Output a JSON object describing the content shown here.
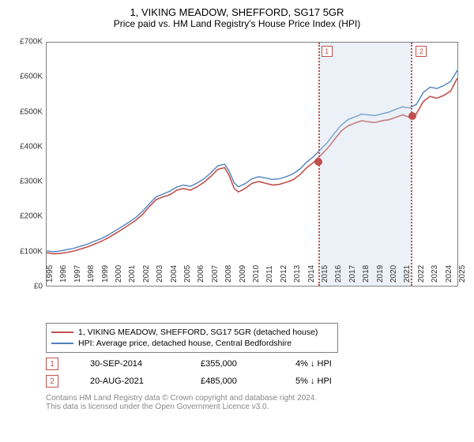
{
  "title": "1, VIKING MEADOW, SHEFFORD, SG17 5GR",
  "subtitle": "Price paid vs. HM Land Registry's House Price Index (HPI)",
  "chart": {
    "type": "line",
    "background_color": "#ffffff",
    "border_color": "#808080",
    "x_range": [
      1995,
      2025
    ],
    "y_range": [
      0,
      700000
    ],
    "y_ticks": [
      0,
      100000,
      200000,
      300000,
      400000,
      500000,
      600000,
      700000
    ],
    "y_tick_labels": [
      "£0",
      "£100K",
      "£200K",
      "£300K",
      "£400K",
      "£500K",
      "£600K",
      "£700K"
    ],
    "x_ticks": [
      1995,
      1996,
      1997,
      1998,
      1999,
      2000,
      2001,
      2002,
      2003,
      2004,
      2005,
      2006,
      2007,
      2008,
      2009,
      2010,
      2011,
      2012,
      2013,
      2014,
      2015,
      2016,
      2017,
      2018,
      2019,
      2020,
      2021,
      2022,
      2023,
      2024,
      2025
    ],
    "tick_fontsize": 10,
    "series": [
      {
        "name": "price_paid",
        "label": "1, VIKING MEADOW, SHEFFORD, SG17 5GR (detached house)",
        "color": "#c0504d",
        "line_width": 1.6,
        "points": [
          [
            1995,
            95000
          ],
          [
            1995.5,
            92000
          ],
          [
            1996,
            93000
          ],
          [
            1996.5,
            96000
          ],
          [
            1997,
            100000
          ],
          [
            1997.5,
            106000
          ],
          [
            1998,
            112000
          ],
          [
            1998.5,
            120000
          ],
          [
            1999,
            128000
          ],
          [
            1999.5,
            138000
          ],
          [
            2000,
            150000
          ],
          [
            2000.5,
            162000
          ],
          [
            2001,
            175000
          ],
          [
            2001.5,
            188000
          ],
          [
            2002,
            205000
          ],
          [
            2002.5,
            228000
          ],
          [
            2003,
            248000
          ],
          [
            2003.5,
            256000
          ],
          [
            2004,
            262000
          ],
          [
            2004.5,
            275000
          ],
          [
            2005,
            280000
          ],
          [
            2005.5,
            275000
          ],
          [
            2006,
            285000
          ],
          [
            2006.5,
            298000
          ],
          [
            2007,
            315000
          ],
          [
            2007.5,
            335000
          ],
          [
            2008,
            340000
          ],
          [
            2008.3,
            320000
          ],
          [
            2008.7,
            280000
          ],
          [
            2009,
            270000
          ],
          [
            2009.5,
            280000
          ],
          [
            2010,
            295000
          ],
          [
            2010.5,
            300000
          ],
          [
            2011,
            295000
          ],
          [
            2011.5,
            290000
          ],
          [
            2012,
            292000
          ],
          [
            2012.5,
            298000
          ],
          [
            2013,
            305000
          ],
          [
            2013.5,
            320000
          ],
          [
            2014,
            340000
          ],
          [
            2014.5,
            355000
          ],
          [
            2015,
            375000
          ],
          [
            2015.5,
            395000
          ],
          [
            2016,
            420000
          ],
          [
            2016.5,
            445000
          ],
          [
            2017,
            460000
          ],
          [
            2017.5,
            468000
          ],
          [
            2018,
            475000
          ],
          [
            2018.5,
            472000
          ],
          [
            2019,
            470000
          ],
          [
            2019.5,
            475000
          ],
          [
            2020,
            478000
          ],
          [
            2020.5,
            485000
          ],
          [
            2021,
            492000
          ],
          [
            2021.5,
            485000
          ],
          [
            2022,
            495000
          ],
          [
            2022.5,
            530000
          ],
          [
            2023,
            545000
          ],
          [
            2023.5,
            540000
          ],
          [
            2024,
            548000
          ],
          [
            2024.5,
            560000
          ],
          [
            2025,
            598000
          ]
        ]
      },
      {
        "name": "hpi",
        "label": "HPI: Average price, detached house, Central Bedfordshire",
        "color": "#4f81bd",
        "line_width": 1.4,
        "points": [
          [
            1995,
            100000
          ],
          [
            1995.5,
            98000
          ],
          [
            1996,
            100000
          ],
          [
            1996.5,
            104000
          ],
          [
            1997,
            108000
          ],
          [
            1997.5,
            114000
          ],
          [
            1998,
            120000
          ],
          [
            1998.5,
            128000
          ],
          [
            1999,
            136000
          ],
          [
            1999.5,
            146000
          ],
          [
            2000,
            158000
          ],
          [
            2000.5,
            170000
          ],
          [
            2001,
            183000
          ],
          [
            2001.5,
            196000
          ],
          [
            2002,
            214000
          ],
          [
            2002.5,
            236000
          ],
          [
            2003,
            256000
          ],
          [
            2003.5,
            264000
          ],
          [
            2004,
            272000
          ],
          [
            2004.5,
            284000
          ],
          [
            2005,
            290000
          ],
          [
            2005.5,
            286000
          ],
          [
            2006,
            296000
          ],
          [
            2006.5,
            308000
          ],
          [
            2007,
            325000
          ],
          [
            2007.5,
            345000
          ],
          [
            2008,
            350000
          ],
          [
            2008.3,
            332000
          ],
          [
            2008.7,
            296000
          ],
          [
            2009,
            285000
          ],
          [
            2009.5,
            294000
          ],
          [
            2010,
            308000
          ],
          [
            2010.5,
            314000
          ],
          [
            2011,
            310000
          ],
          [
            2011.5,
            306000
          ],
          [
            2012,
            308000
          ],
          [
            2012.5,
            314000
          ],
          [
            2013,
            322000
          ],
          [
            2013.5,
            336000
          ],
          [
            2014,
            356000
          ],
          [
            2014.5,
            372000
          ],
          [
            2015,
            392000
          ],
          [
            2015.5,
            412000
          ],
          [
            2016,
            438000
          ],
          [
            2016.5,
            462000
          ],
          [
            2017,
            478000
          ],
          [
            2017.5,
            486000
          ],
          [
            2018,
            494000
          ],
          [
            2018.5,
            492000
          ],
          [
            2019,
            490000
          ],
          [
            2019.5,
            495000
          ],
          [
            2020,
            500000
          ],
          [
            2020.5,
            508000
          ],
          [
            2021,
            515000
          ],
          [
            2021.5,
            512000
          ],
          [
            2022,
            522000
          ],
          [
            2022.5,
            556000
          ],
          [
            2023,
            572000
          ],
          [
            2023.5,
            568000
          ],
          [
            2024,
            576000
          ],
          [
            2024.5,
            588000
          ],
          [
            2025,
            620000
          ]
        ]
      }
    ],
    "shaded_regions": [
      {
        "x_start": 2014.75,
        "x_end": 2021.63,
        "fill": "rgba(200,214,232,0.35)",
        "border_color": "#c0504d"
      }
    ],
    "event_markers": [
      {
        "id": "1",
        "x": 2014.75,
        "y": 355000,
        "color": "#c0504d",
        "label_y_offset": -12
      },
      {
        "id": "2",
        "x": 2021.63,
        "y": 485000,
        "color": "#c0504d",
        "label_y_offset": -12
      }
    ]
  },
  "legend": {
    "border_color": "#808080",
    "fontsize": 10.5
  },
  "sales": [
    {
      "badge": "1",
      "badge_color": "#c0504d",
      "date": "30-SEP-2014",
      "price": "£355,000",
      "delta": "4% ↓ HPI"
    },
    {
      "badge": "2",
      "badge_color": "#c0504d",
      "date": "20-AUG-2021",
      "price": "£485,000",
      "delta": "5% ↓ HPI"
    }
  ],
  "footer_line1": "Contains HM Land Registry data © Crown copyright and database right 2024.",
  "footer_line2": "This data is licensed under the Open Government Licence v3.0.",
  "footer_color": "#999999"
}
